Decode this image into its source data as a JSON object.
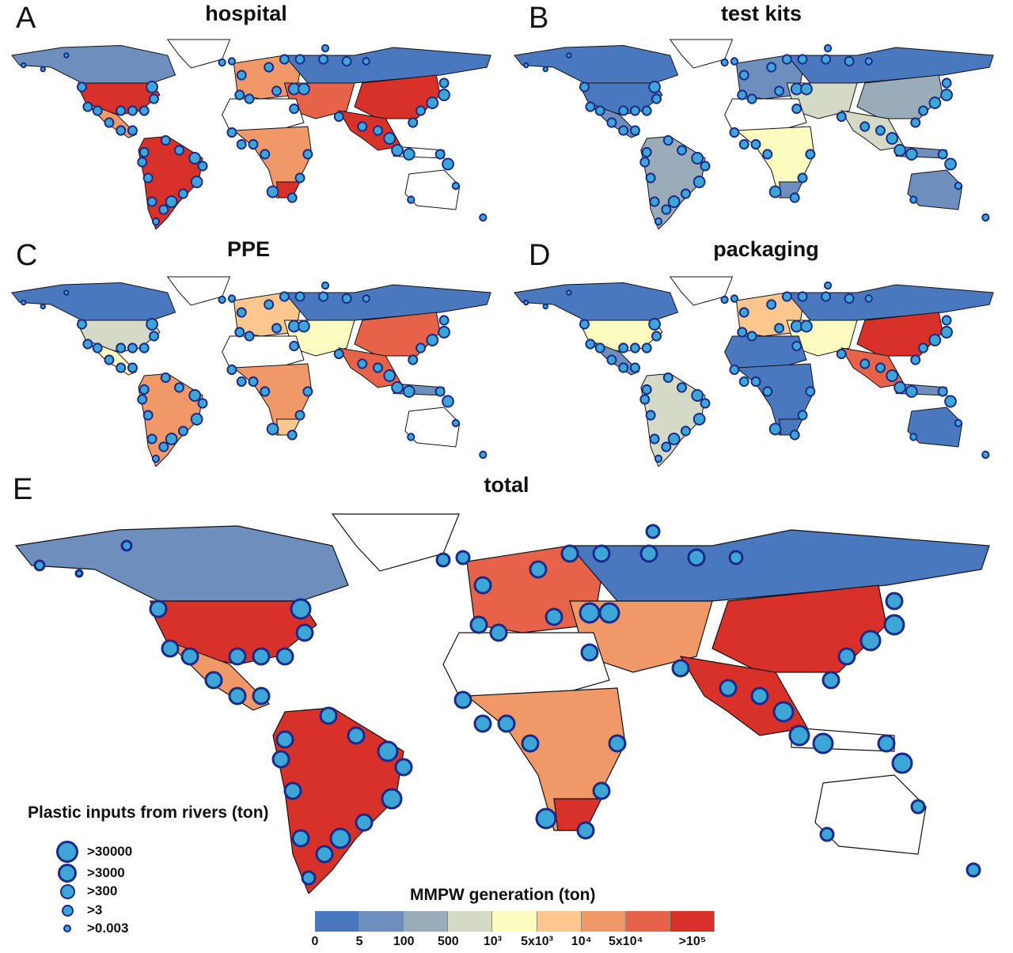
{
  "panels": [
    {
      "letter": "A",
      "title": "hospital",
      "levels": {
        "canada": 1,
        "usa": 8,
        "mexico": 6,
        "samerica": 8,
        "europe": 6,
        "russia": 0,
        "mideast": 7,
        "china": 8,
        "india": 8,
        "nafrica": -1,
        "ssafrica": 6,
        "safrica": 8,
        "australia": -1,
        "indonesia": -1
      }
    },
    {
      "letter": "B",
      "title": "test kits",
      "levels": {
        "canada": 0,
        "usa": 0,
        "mexico": 1,
        "samerica": 2,
        "europe": 1,
        "russia": 0,
        "mideast": 3,
        "china": 2,
        "india": 3,
        "nafrica": -1,
        "ssafrica": 4,
        "safrica": 1,
        "australia": 1,
        "indonesia": 1
      }
    },
    {
      "letter": "C",
      "title": "PPE",
      "levels": {
        "canada": 0,
        "usa": 3,
        "mexico": 4,
        "samerica": 6,
        "europe": 5,
        "russia": 0,
        "mideast": 4,
        "china": 7,
        "india": 7,
        "nafrica": -1,
        "ssafrica": 6,
        "safrica": 5,
        "australia": -1,
        "indonesia": 1
      }
    },
    {
      "letter": "D",
      "title": "packaging",
      "levels": {
        "canada": 0,
        "usa": 4,
        "mexico": 1,
        "samerica": 3,
        "europe": 5,
        "russia": 0,
        "mideast": 4,
        "china": 8,
        "india": 7,
        "nafrica": 0,
        "ssafrica": 0,
        "safrica": 0,
        "australia": 0,
        "indonesia": 1
      }
    },
    {
      "letter": "E",
      "title": "total",
      "levels": {
        "canada": 1,
        "usa": 8,
        "mexico": 6,
        "samerica": 8,
        "europe": 7,
        "russia": 0,
        "mideast": 6,
        "china": 8,
        "india": 8,
        "nafrica": -1,
        "ssafrica": 6,
        "safrica": 8,
        "australia": -1,
        "indonesia": -1
      }
    }
  ],
  "rivers_legend": {
    "title": "Plastic inputs from rivers (ton)",
    "items": [
      ">30000",
      ">3000",
      ">300",
      ">3",
      ">0.003"
    ]
  },
  "colorbar": {
    "title": "MMPW generation (ton)",
    "colors": [
      "#4a78bf",
      "#6e8fbd",
      "#9aabb9",
      "#d4dac6",
      "#fdfcc0",
      "#fbc78f",
      "#f19868",
      "#e6634a",
      "#d8312a"
    ],
    "ticks": [
      "0",
      "5",
      "100",
      "500",
      "10³",
      "5x10³",
      "10⁴",
      "5x10⁴",
      ">10⁵"
    ]
  },
  "marker_colors": {
    "fill": "#3da6d6",
    "stroke": "#1a2a8a"
  }
}
